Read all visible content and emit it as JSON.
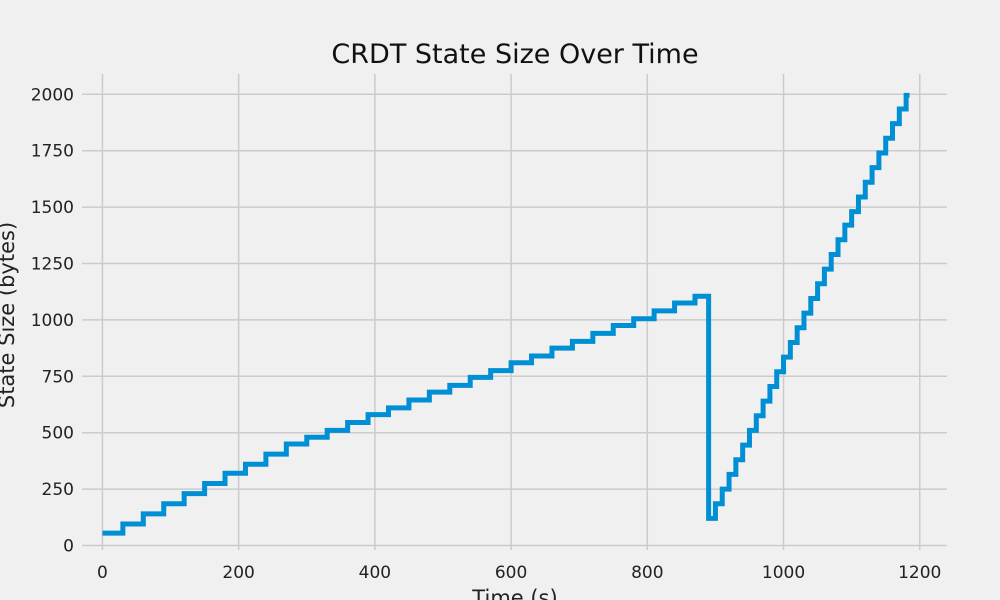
{
  "chart_data": {
    "type": "line",
    "title": "CRDT State Size Over Time",
    "xlabel": "Time (s)",
    "ylabel": "State Size (bytes)",
    "xlim": [
      -30,
      1240
    ],
    "ylim": [
      -20,
      2090
    ],
    "xticks": [
      0,
      200,
      400,
      600,
      800,
      1000,
      1200
    ],
    "yticks": [
      0,
      250,
      500,
      750,
      1000,
      1250,
      1500,
      1750,
      2000
    ],
    "grid": true,
    "line_color": "#008fd5",
    "series": [
      {
        "x": [
          0,
          30,
          60,
          90,
          120,
          150,
          180,
          210,
          240,
          270,
          300,
          330,
          360,
          390,
          420,
          450,
          480,
          510,
          540,
          570,
          600,
          630,
          660,
          690,
          720,
          750,
          780,
          810,
          840,
          870,
          890,
          900,
          910,
          920,
          930,
          940,
          950,
          960,
          970,
          980,
          990,
          1000,
          1010,
          1020,
          1030,
          1040,
          1050,
          1060,
          1070,
          1080,
          1090,
          1100,
          1110,
          1120,
          1130,
          1140,
          1150,
          1160,
          1170,
          1180
        ],
        "y": [
          55,
          95,
          140,
          185,
          230,
          275,
          320,
          360,
          405,
          450,
          480,
          510,
          545,
          580,
          610,
          645,
          680,
          710,
          745,
          775,
          810,
          840,
          875,
          905,
          940,
          975,
          1005,
          1040,
          1075,
          1105,
          120,
          185,
          250,
          315,
          380,
          445,
          510,
          575,
          640,
          705,
          770,
          835,
          900,
          965,
          1030,
          1095,
          1160,
          1225,
          1290,
          1355,
          1420,
          1480,
          1545,
          1610,
          1675,
          1740,
          1805,
          1870,
          1935,
          1995
        ]
      }
    ]
  }
}
